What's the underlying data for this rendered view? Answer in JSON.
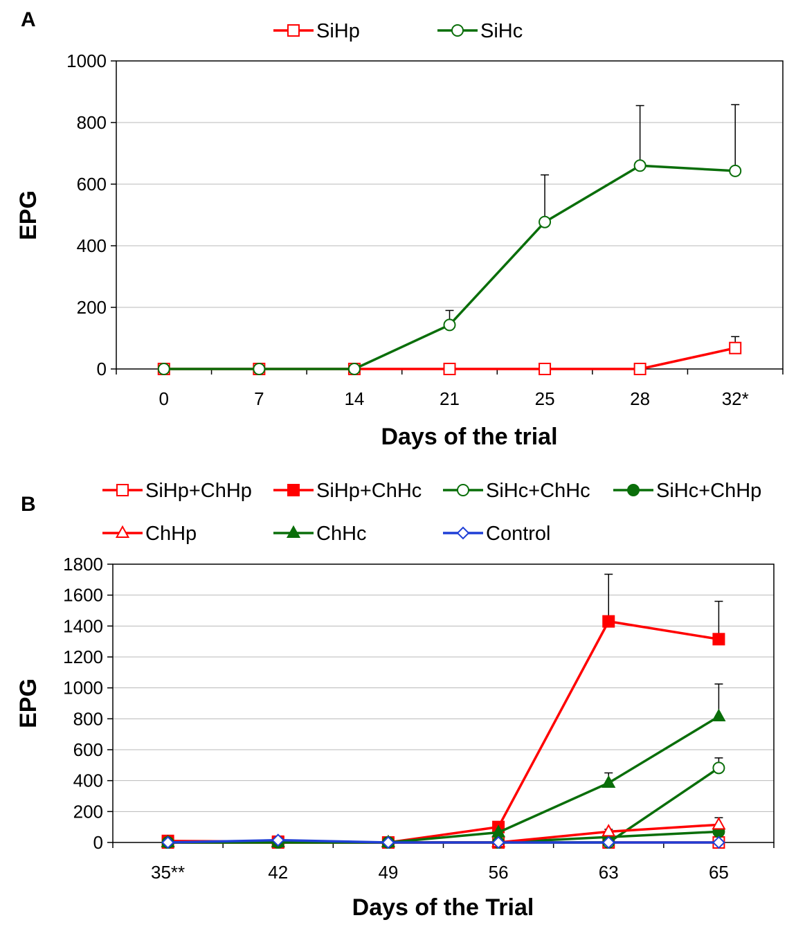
{
  "chart_data": [
    {
      "panel_label": "A",
      "type": "line",
      "categories": [
        "0",
        "7",
        "14",
        "21",
        "25",
        "28",
        "32*"
      ],
      "xlabel": "Days of the trial",
      "ylabel": "EPG",
      "ylim": [
        0,
        1000
      ],
      "yticks": [
        0,
        200,
        400,
        600,
        800,
        1000
      ],
      "grid": true,
      "legend": "top",
      "series": [
        {
          "name": "SiHp",
          "color": "#ff0000",
          "marker": "square-open",
          "values": [
            0,
            0,
            0,
            0,
            0,
            0,
            68
          ],
          "error": [
            0,
            0,
            0,
            0,
            0,
            0,
            37
          ]
        },
        {
          "name": "SiHc",
          "color": "#0a6e0a",
          "marker": "circle-open",
          "values": [
            0,
            0,
            0,
            143,
            477,
            660,
            643
          ],
          "error": [
            0,
            0,
            0,
            47,
            153,
            195,
            215
          ]
        }
      ]
    },
    {
      "panel_label": "B",
      "type": "line",
      "categories": [
        "35**",
        "42",
        "49",
        "56",
        "63",
        "65"
      ],
      "xlabel": "Days of the Trial",
      "ylabel": "EPG",
      "ylim": [
        0,
        1800
      ],
      "yticks": [
        0,
        200,
        400,
        600,
        800,
        1000,
        1200,
        1400,
        1600,
        1800
      ],
      "grid": true,
      "legend": "top",
      "series": [
        {
          "name": "SiHp+ChHp",
          "color": "#ff0000",
          "marker": "square-open",
          "values": [
            0,
            0,
            0,
            0,
            0,
            0
          ],
          "error": [
            0,
            0,
            0,
            0,
            0,
            0
          ]
        },
        {
          "name": "SiHp+ChHc",
          "color": "#ff0000",
          "marker": "square-filled",
          "values": [
            10,
            5,
            0,
            100,
            1430,
            1315
          ],
          "error": [
            0,
            0,
            0,
            0,
            305,
            245
          ]
        },
        {
          "name": "SiHc+ChHc",
          "color": "#0a6e0a",
          "marker": "circle-open",
          "values": [
            0,
            0,
            0,
            0,
            0,
            482
          ],
          "error": [
            0,
            0,
            0,
            0,
            0,
            65
          ]
        },
        {
          "name": "SiHc+ChHp",
          "color": "#0a6e0a",
          "marker": "circle-filled",
          "values": [
            0,
            0,
            0,
            0,
            35,
            70
          ],
          "error": [
            0,
            0,
            0,
            0,
            0,
            0
          ]
        },
        {
          "name": "ChHp",
          "color": "#ff0000",
          "marker": "triangle-open",
          "values": [
            0,
            0,
            0,
            0,
            70,
            115
          ],
          "error": [
            0,
            0,
            0,
            0,
            15,
            45
          ]
        },
        {
          "name": "ChHc",
          "color": "#0a6e0a",
          "marker": "triangle-filled",
          "values": [
            0,
            0,
            0,
            65,
            385,
            815
          ],
          "error": [
            0,
            0,
            0,
            0,
            65,
            210
          ]
        },
        {
          "name": "Control",
          "color": "#1f3fd6",
          "marker": "diamond-open",
          "values": [
            0,
            15,
            0,
            0,
            0,
            0
          ],
          "error": [
            0,
            0,
            0,
            0,
            0,
            0
          ]
        }
      ]
    }
  ]
}
